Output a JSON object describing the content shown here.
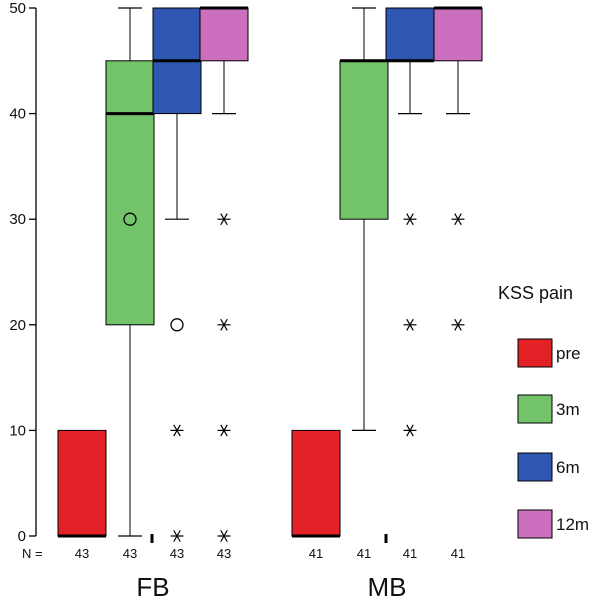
{
  "chart_data": {
    "type": "boxplot",
    "groups": [
      "FB",
      "MB"
    ],
    "n_prefix": "N =",
    "ylim": [
      0,
      50
    ],
    "yticks": [
      0,
      10,
      20,
      30,
      40,
      50
    ],
    "legend": {
      "title": "KSS pain",
      "placement": "right",
      "entries": [
        {
          "label": "pre",
          "color": "#e32227"
        },
        {
          "label": "3m",
          "color": "#73c36a"
        },
        {
          "label": "6m",
          "color": "#2f56b0"
        },
        {
          "label": "12m",
          "color": "#cc6fbf"
        }
      ]
    },
    "boxes": [
      {
        "group": "FB",
        "series": "pre",
        "n": "43",
        "whisker_low": 0,
        "q1": 0,
        "median": 0,
        "q3": 10,
        "whisker_high": 10,
        "outliers": [],
        "extremes": []
      },
      {
        "group": "FB",
        "series": "3m",
        "n": "43",
        "whisker_low": 0,
        "q1": 20,
        "median": 40,
        "q3": 45,
        "whisker_high": 50,
        "outliers": [
          30
        ],
        "extremes": []
      },
      {
        "group": "FB",
        "series": "6m",
        "n": "43",
        "whisker_low": 30,
        "q1": 40,
        "median": 45,
        "q3": 50,
        "whisker_high": 50,
        "outliers": [
          20
        ],
        "extremes": [
          0,
          10
        ]
      },
      {
        "group": "FB",
        "series": "12m",
        "n": "43",
        "whisker_low": 40,
        "q1": 45,
        "median": 50,
        "q3": 50,
        "whisker_high": 50,
        "outliers": [],
        "extremes": [
          0,
          10,
          20,
          30
        ]
      },
      {
        "group": "MB",
        "series": "pre",
        "n": "41",
        "whisker_low": 0,
        "q1": 0,
        "median": 0,
        "q3": 10,
        "whisker_high": 10,
        "outliers": [],
        "extremes": []
      },
      {
        "group": "MB",
        "series": "3m",
        "n": "41",
        "whisker_low": 10,
        "q1": 30,
        "median": 45,
        "q3": 45,
        "whisker_high": 50,
        "outliers": [],
        "extremes": []
      },
      {
        "group": "MB",
        "series": "6m",
        "n": "41",
        "whisker_low": 40,
        "q1": 45,
        "median": 45,
        "q3": 50,
        "whisker_high": 50,
        "outliers": [],
        "extremes": [
          10,
          20,
          30
        ]
      },
      {
        "group": "MB",
        "series": "12m",
        "n": "41",
        "whisker_low": 40,
        "q1": 45,
        "median": 50,
        "q3": 50,
        "whisker_high": 50,
        "outliers": [],
        "extremes": [
          20,
          30
        ]
      }
    ]
  }
}
